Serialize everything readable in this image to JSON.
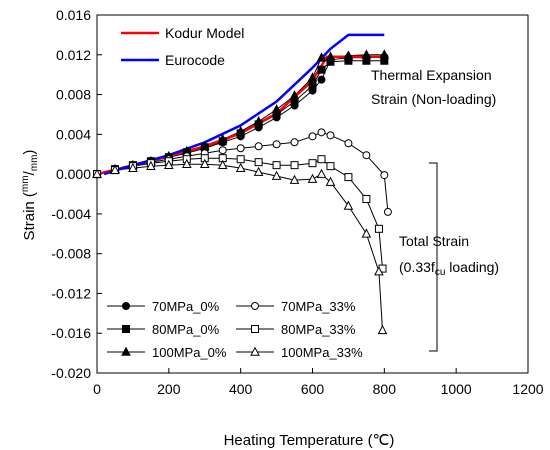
{
  "chart_data": {
    "type": "line",
    "xlabel": "Heating Temperature (℃)",
    "ylabel_main": "Strain (",
    "ylabel_num": "mm",
    "ylabel_slash": "/",
    "ylabel_den": "mm",
    "ylabel_close": ")",
    "xlim": [
      0,
      1200
    ],
    "ylim": [
      -0.02,
      0.016
    ],
    "xticks": [
      "0",
      "200",
      "400",
      "600",
      "800",
      "1000",
      "1200"
    ],
    "yticks": [
      "0.016",
      "0.012",
      "0.008",
      "0.004",
      "0.000",
      "-0.004",
      "-0.008",
      "-0.012",
      "-0.016",
      "-0.020"
    ],
    "grid": false,
    "models": [
      {
        "name": "Kodur Model",
        "color": "#ff0000",
        "x": [
          0,
          100,
          200,
          300,
          400,
          500,
          600,
          640,
          700,
          800
        ],
        "y": [
          0.0,
          0.0009,
          0.0018,
          0.0028,
          0.0041,
          0.0061,
          0.0094,
          0.0118,
          0.0118,
          0.0118
        ]
      },
      {
        "name": "Eurocode",
        "color": "#0000ff",
        "x": [
          20,
          100,
          200,
          300,
          400,
          500,
          600,
          650,
          700,
          800
        ],
        "y": [
          0.0,
          0.0009,
          0.0019,
          0.0032,
          0.0049,
          0.0073,
          0.0107,
          0.0126,
          0.014,
          0.014
        ]
      }
    ],
    "series": [
      {
        "name": "70MPa_0%",
        "marker": "circle",
        "filled": true,
        "x": [
          0,
          50,
          100,
          150,
          200,
          250,
          300,
          350,
          400,
          450,
          500,
          550,
          600,
          625,
          650,
          700,
          750,
          800
        ],
        "y": [
          0.0,
          0.0005,
          0.0009,
          0.0013,
          0.0017,
          0.0021,
          0.0026,
          0.0032,
          0.0038,
          0.0047,
          0.0057,
          0.0069,
          0.0084,
          0.0095,
          0.0115,
          0.0117,
          0.0117,
          0.0118
        ]
      },
      {
        "name": "80MPa_0%",
        "marker": "square",
        "filled": true,
        "x": [
          0,
          50,
          100,
          150,
          200,
          250,
          300,
          350,
          400,
          450,
          500,
          550,
          600,
          625,
          650,
          700,
          750,
          800
        ],
        "y": [
          0.0,
          0.0005,
          0.0009,
          0.0013,
          0.0017,
          0.0022,
          0.0027,
          0.0033,
          0.0041,
          0.005,
          0.006,
          0.0073,
          0.0089,
          0.0105,
          0.0113,
          0.0114,
          0.0114,
          0.0114
        ]
      },
      {
        "name": "100MPa_0%",
        "marker": "triangle",
        "filled": true,
        "x": [
          0,
          50,
          100,
          150,
          200,
          250,
          300,
          350,
          400,
          450,
          500,
          550,
          600,
          625,
          650,
          700,
          750,
          800
        ],
        "y": [
          0.0,
          0.0005,
          0.0009,
          0.0013,
          0.0018,
          0.0023,
          0.0028,
          0.0035,
          0.0043,
          0.0053,
          0.0065,
          0.0079,
          0.0097,
          0.0117,
          0.0118,
          0.0119,
          0.012,
          0.012
        ]
      },
      {
        "name": "70MPa_33%",
        "marker": "circle",
        "filled": false,
        "x": [
          0,
          50,
          100,
          150,
          200,
          250,
          300,
          350,
          400,
          450,
          500,
          550,
          600,
          625,
          650,
          700,
          750,
          800,
          810
        ],
        "y": [
          0.0,
          0.0005,
          0.0009,
          0.0012,
          0.0015,
          0.0018,
          0.0021,
          0.0024,
          0.0026,
          0.0028,
          0.003,
          0.0032,
          0.0038,
          0.0042,
          0.0039,
          0.0031,
          0.0019,
          -0.0001,
          -0.0038
        ]
      },
      {
        "name": "80MPa_33%",
        "marker": "square",
        "filled": false,
        "x": [
          0,
          50,
          100,
          150,
          200,
          250,
          300,
          350,
          400,
          450,
          500,
          550,
          600,
          625,
          650,
          700,
          750,
          785,
          795
        ],
        "y": [
          0.0,
          0.0004,
          0.0008,
          0.0011,
          0.0013,
          0.0015,
          0.0016,
          0.0016,
          0.0015,
          0.0012,
          0.0009,
          0.0009,
          0.0011,
          0.0015,
          0.0008,
          -0.0003,
          -0.0025,
          -0.0055,
          -0.0095
        ]
      },
      {
        "name": "100MPa_33%",
        "marker": "triangle",
        "filled": false,
        "x": [
          0,
          50,
          100,
          150,
          200,
          250,
          300,
          350,
          400,
          450,
          500,
          550,
          600,
          625,
          650,
          700,
          750,
          785,
          795
        ],
        "y": [
          0.0,
          0.0004,
          0.0006,
          0.0008,
          0.0009,
          0.001,
          0.001,
          0.0009,
          0.0006,
          0.0002,
          -0.0002,
          -0.0006,
          -0.0005,
          0.0,
          -0.0008,
          -0.0032,
          -0.006,
          -0.0098,
          -0.0157
        ]
      }
    ],
    "annotations": {
      "thermal_line1": "Thermal Expansion",
      "thermal_line2": "Strain (Non-loading)",
      "total_line1": "Total Strain",
      "total_line2_a": "(0.33f",
      "total_line2_sub": "cu",
      "total_line2_b": " loading)"
    },
    "legend_top_placement": "top-left",
    "legend_bottom_placement": "bottom-left"
  }
}
